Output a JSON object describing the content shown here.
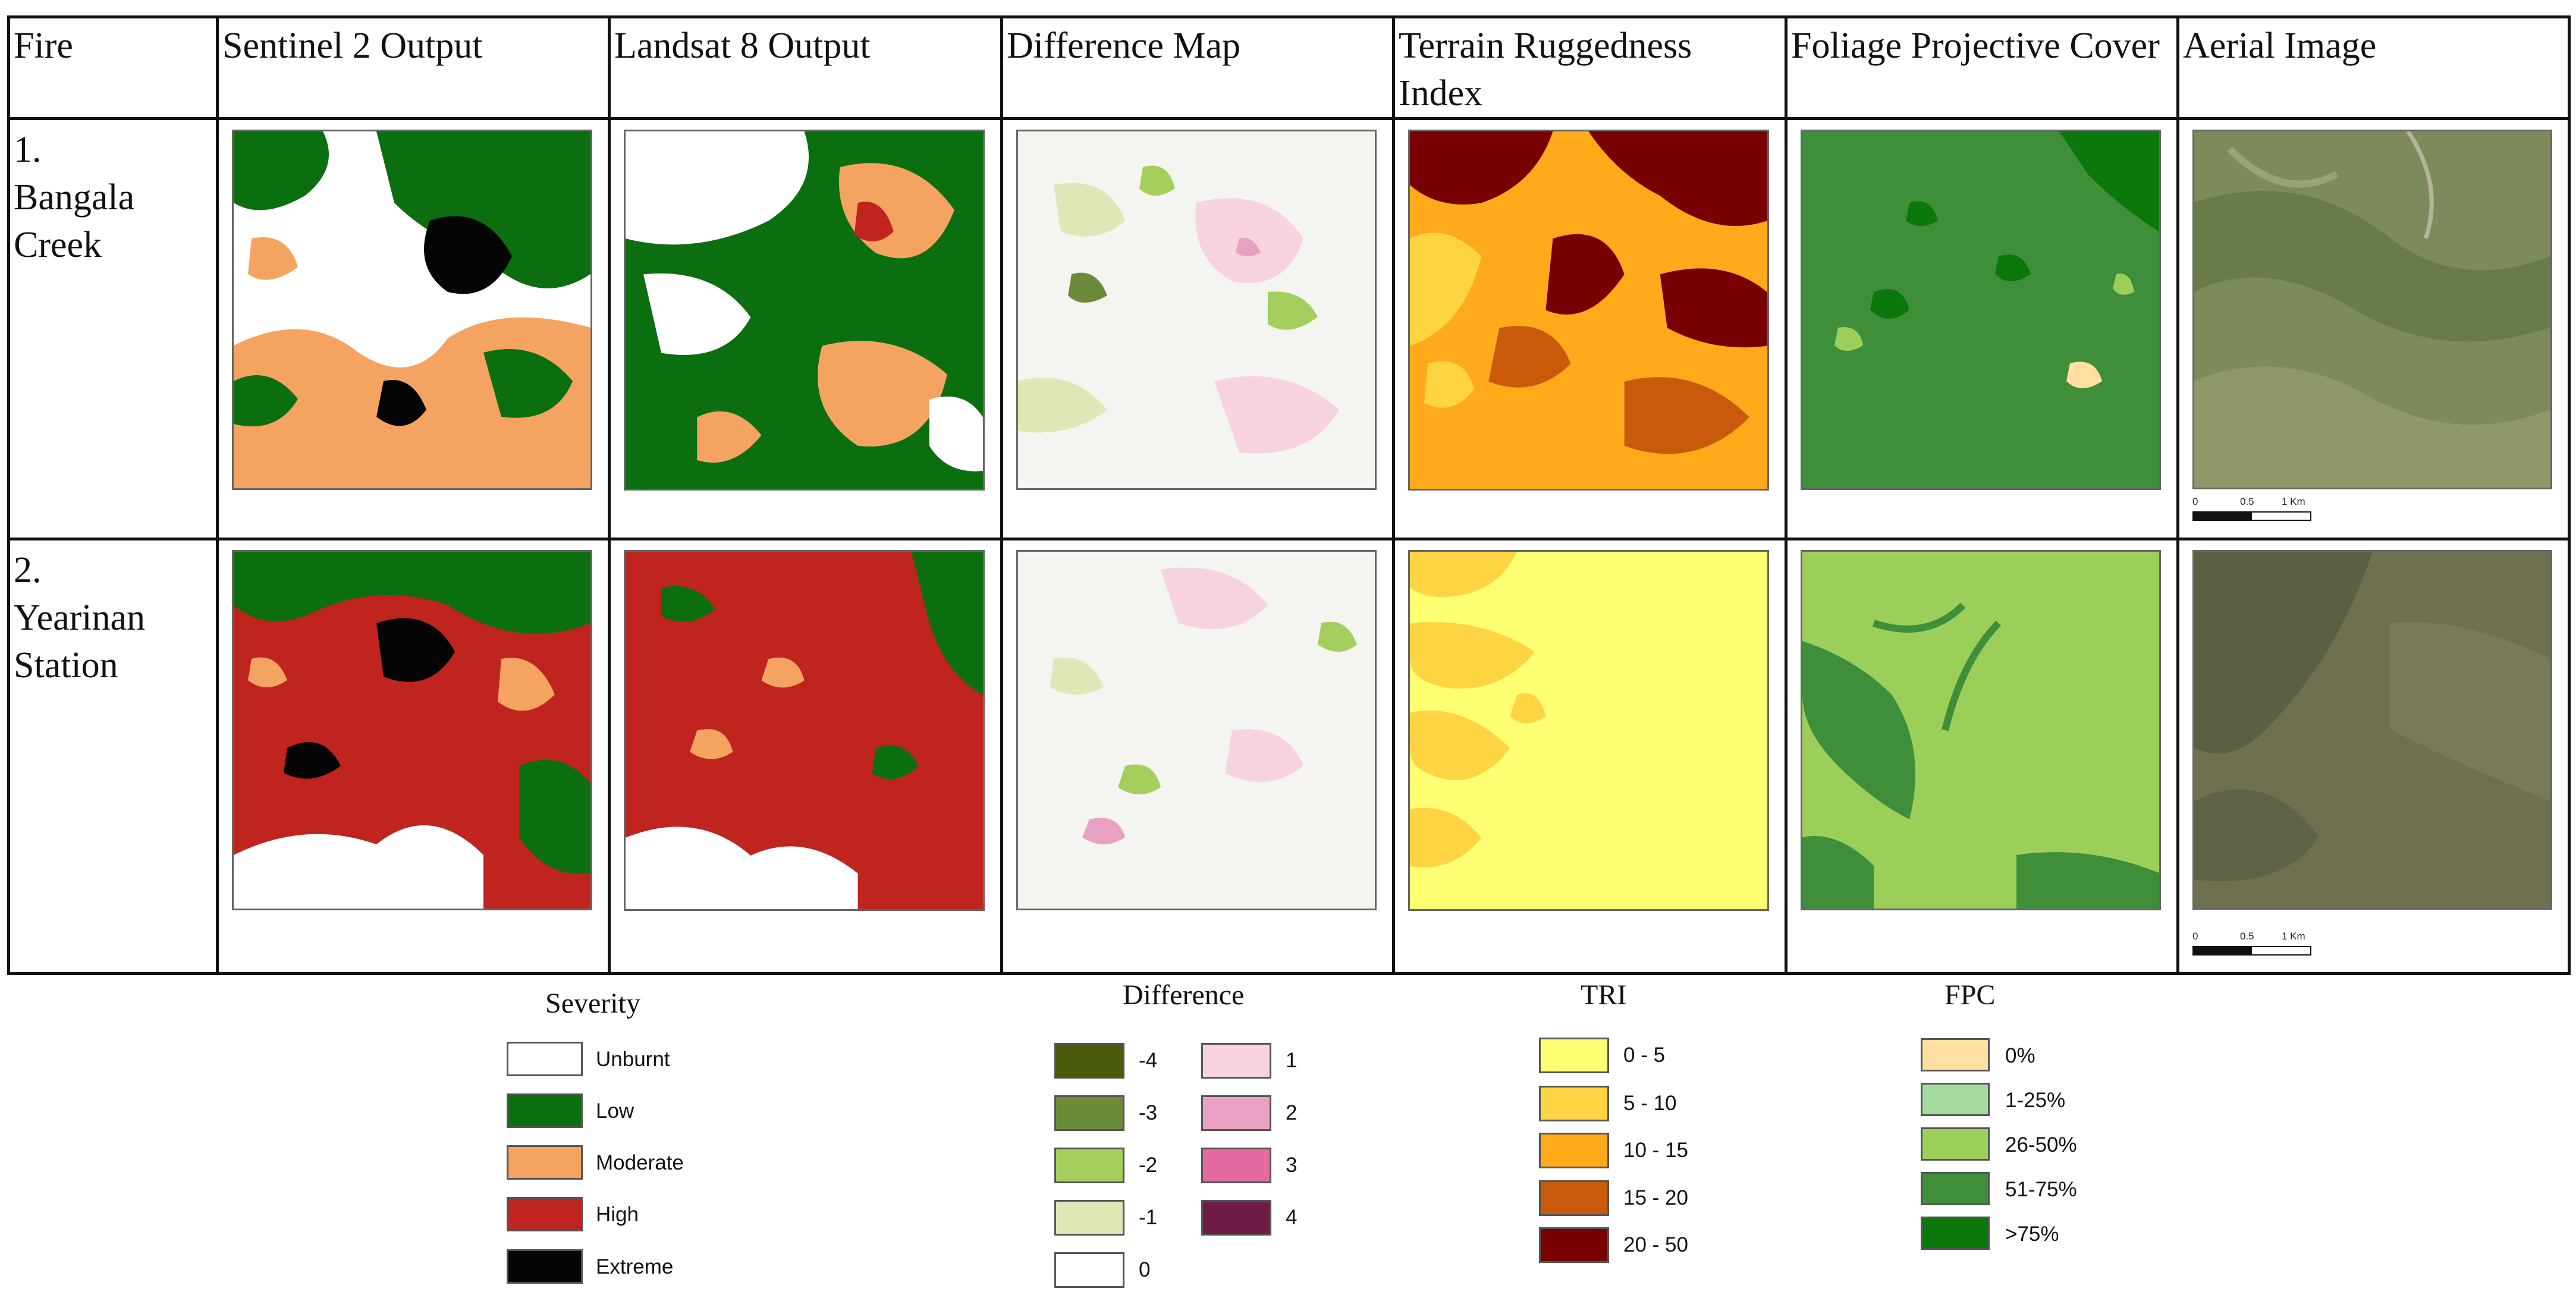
{
  "headers": {
    "fire": "Fire",
    "sentinel": "Sentinel 2 Output",
    "landsat": "Landsat 8 Output",
    "difference": "Difference Map",
    "tri": "Terrain Ruggedness Index",
    "fpc": "Foliage Projective Cover",
    "aerial": "Aerial Image"
  },
  "rows": [
    {
      "number": "1.",
      "name_line1": "Bangala",
      "name_line2": "Creek"
    },
    {
      "number": "2.",
      "name_line1": "Yearinan",
      "name_line2": "Station"
    }
  ],
  "scale_bar": {
    "t0": "0",
    "t1": "0.5",
    "t2": "1 Km"
  },
  "legends": {
    "severity": {
      "title": "Severity",
      "items": [
        {
          "label": "Unburnt",
          "color": "#ffffff"
        },
        {
          "label": "Low",
          "color": "#0b6e0f"
        },
        {
          "label": "Moderate",
          "color": "#f4a460"
        },
        {
          "label": "High",
          "color": "#c0241f"
        },
        {
          "label": "Extreme",
          "color": "#050505"
        }
      ]
    },
    "difference": {
      "title": "Difference",
      "items": [
        {
          "label": "-4",
          "color": "#4a5a0c"
        },
        {
          "label": "-3",
          "color": "#6b8b3a"
        },
        {
          "label": "-2",
          "color": "#a4cf5c"
        },
        {
          "label": "-1",
          "color": "#dde8b6"
        },
        {
          "label": "0",
          "color": "#ffffff"
        },
        {
          "label": "1",
          "color": "#f6d3df"
        },
        {
          "label": "2",
          "color": "#e8a1c3"
        },
        {
          "label": "3",
          "color": "#e46aa0"
        },
        {
          "label": "4",
          "color": "#6e1c45"
        }
      ]
    },
    "tri": {
      "title": "TRI",
      "items": [
        {
          "label": "0 - 5",
          "color": "#ffff73"
        },
        {
          "label": "5 - 10",
          "color": "#ffd442"
        },
        {
          "label": "10 - 15",
          "color": "#ffaa1a"
        },
        {
          "label": "15 - 20",
          "color": "#c85a0a"
        },
        {
          "label": "20 - 50",
          "color": "#780000"
        }
      ]
    },
    "fpc": {
      "title": "FPC",
      "items": [
        {
          "label": "0%",
          "color": "#ffe0a0"
        },
        {
          "label": "1-25%",
          "color": "#a6dba0"
        },
        {
          "label": "26-50%",
          "color": "#9ccf5a"
        },
        {
          "label": "51-75%",
          "color": "#3e8e3a"
        },
        {
          "label": ">75%",
          "color": "#0a780a"
        }
      ]
    }
  }
}
